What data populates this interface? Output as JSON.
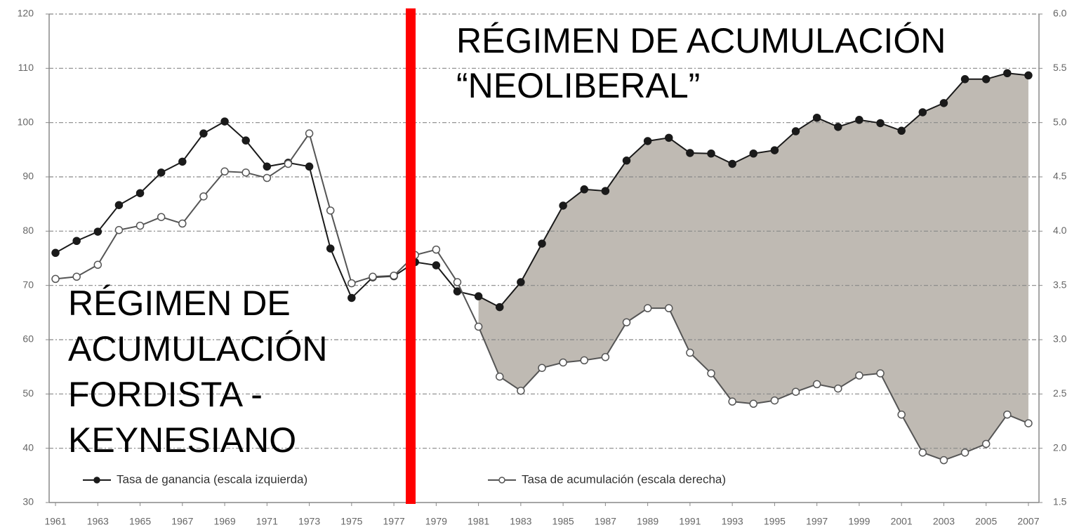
{
  "chart_data": {
    "type": "line",
    "x": [
      1961,
      1962,
      1963,
      1964,
      1965,
      1966,
      1967,
      1968,
      1969,
      1970,
      1971,
      1972,
      1973,
      1974,
      1975,
      1976,
      1977,
      1978,
      1979,
      1980,
      1981,
      1982,
      1983,
      1984,
      1985,
      1986,
      1987,
      1988,
      1989,
      1990,
      1991,
      1992,
      1993,
      1994,
      1995,
      1996,
      1997,
      1998,
      1999,
      2000,
      2001,
      2002,
      2003,
      2004,
      2005,
      2006,
      2007
    ],
    "xlim": [
      1960.7,
      2007.5
    ],
    "xticks": [
      1961,
      1963,
      1965,
      1967,
      1969,
      1971,
      1973,
      1975,
      1977,
      1979,
      1981,
      1983,
      1985,
      1987,
      1989,
      1991,
      1993,
      1995,
      1997,
      1999,
      2001,
      2003,
      2005,
      2007
    ],
    "ylim": [
      30,
      120
    ],
    "yticks": [
      30,
      40,
      50,
      60,
      70,
      80,
      90,
      100,
      110,
      120
    ],
    "y2lim": [
      1.5,
      6.0
    ],
    "y2ticks": [
      1.5,
      {
        "value": 2.0,
        "label": "2.0"
      },
      2.5,
      {
        "value": 3.0,
        "label": "3.0"
      },
      3.5,
      {
        "value": 4.0,
        "label": "4.0"
      },
      4.5,
      {
        "value": 5.0,
        "label": "5.0"
      },
      5.5,
      {
        "value": 6.0,
        "label": "6.0"
      }
    ],
    "grid": true,
    "series": [
      {
        "name": "Tasa de ganancia (escala izquierda)",
        "color": "#1a1a1a",
        "marker": "filled",
        "values": [
          76.0,
          78.2,
          79.9,
          84.8,
          87.0,
          90.8,
          92.8,
          98.0,
          100.2,
          96.7,
          91.9,
          92.6,
          91.9,
          76.8,
          67.7,
          71.5,
          71.7,
          74.3,
          73.7,
          68.9,
          68.0,
          66.0,
          70.6,
          77.7,
          84.7,
          87.7,
          87.4,
          93.0,
          96.6,
          97.2,
          94.4,
          94.3,
          92.4,
          94.3,
          94.9,
          98.4,
          100.9,
          99.2,
          100.5,
          99.9,
          98.5,
          101.9,
          103.6,
          108.0,
          108.0,
          109.1,
          108.7
        ]
      },
      {
        "name": "Tasa de acumulación (escala derecha)",
        "color": "#555555",
        "marker": "open",
        "axis": "y2",
        "values": [
          3.56,
          3.58,
          3.69,
          4.01,
          4.05,
          4.13,
          4.07,
          4.32,
          4.55,
          4.54,
          4.49,
          4.62,
          4.9,
          4.19,
          3.52,
          3.58,
          3.59,
          3.78,
          3.83,
          3.53,
          3.12,
          2.66,
          2.53,
          2.74,
          2.79,
          2.81,
          2.84,
          3.16,
          3.29,
          3.29,
          2.88,
          2.69,
          2.43,
          2.41,
          2.44,
          2.52,
          2.59,
          2.55,
          2.67,
          2.69,
          2.31,
          1.96,
          1.89,
          1.96,
          2.04,
          2.31,
          2.23
        ]
      }
    ],
    "shade_color": "#bfbab3",
    "annotations": {
      "right": [
        "RÉGIMEN DE ACUMULACIÓN",
        "“NEOLIBERAL”"
      ],
      "left": [
        "RÉGIMEN DE",
        "ACUMULACIÓN",
        "FORDISTA -",
        "KEYNESIANO"
      ]
    }
  }
}
